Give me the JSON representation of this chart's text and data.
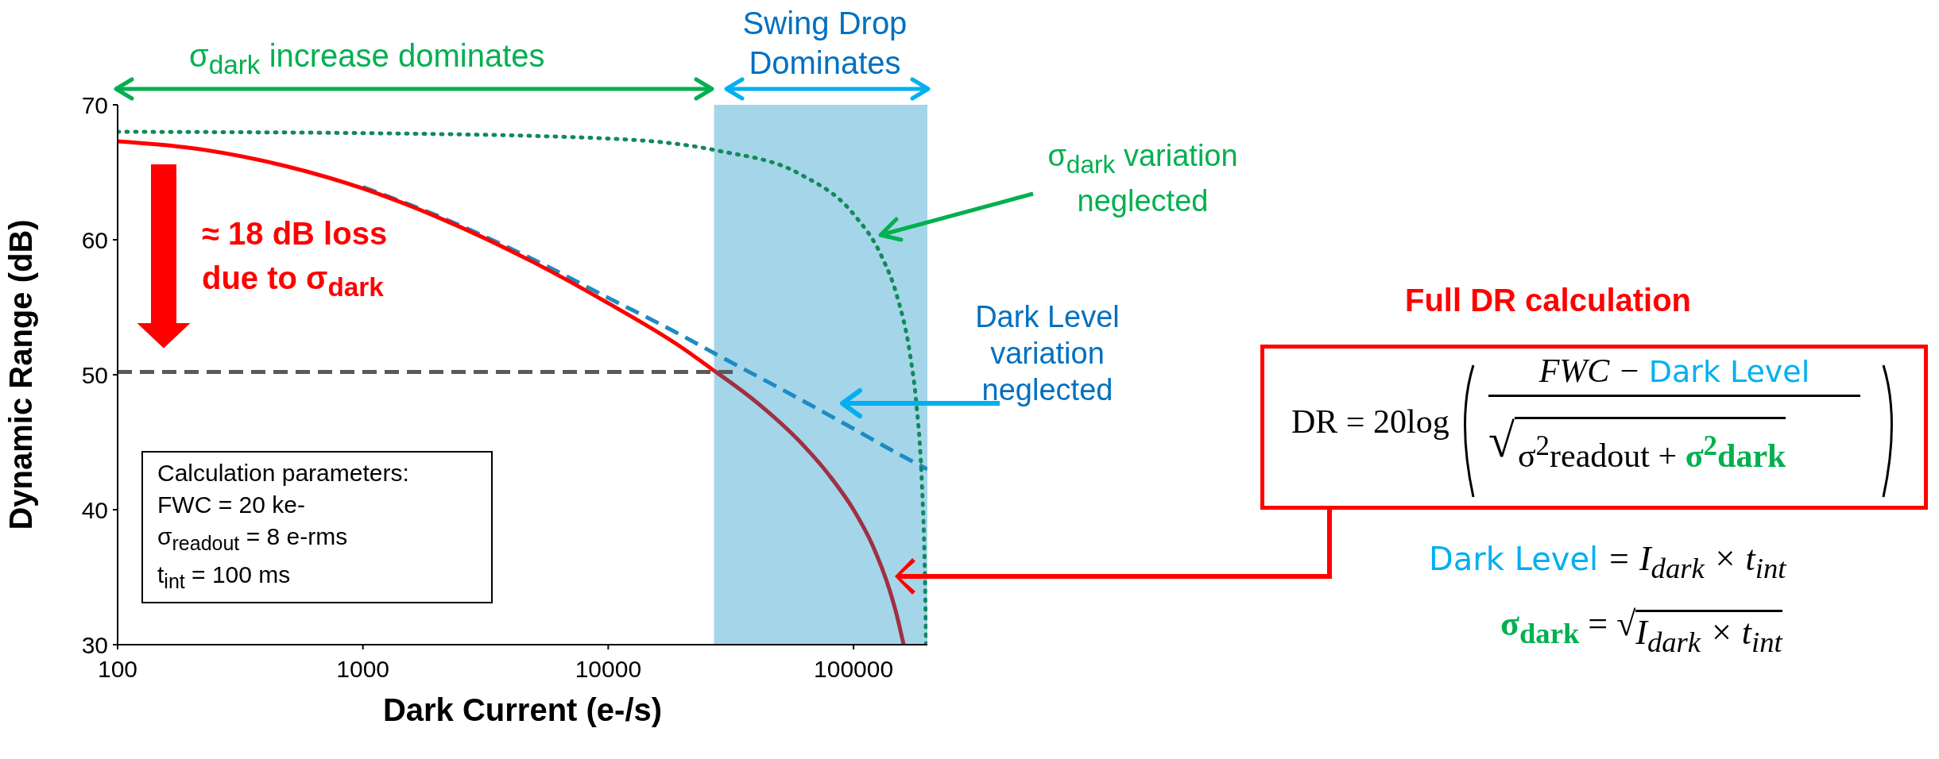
{
  "chart_data": {
    "type": "line",
    "xlabel": "Dark Current (e-/s)",
    "ylabel": "Dynamic Range (dB)",
    "xlim": [
      100,
      200000
    ],
    "xticks": [
      100,
      1000,
      10000,
      100000
    ],
    "ylim": [
      30,
      70
    ],
    "yticks": [
      30,
      40,
      50,
      60,
      70
    ],
    "log": "x",
    "grid": false,
    "legend": false,
    "marker": "none",
    "bands": [
      {
        "axis": "x",
        "from": 27000,
        "to": 200000,
        "color": "#a5d5e8"
      }
    ],
    "series": [
      {
        "color": "#595959",
        "line_style": "dashed",
        "x": [
          100,
          33000
        ],
        "values": [
          50.2,
          50.2
        ]
      },
      {
        "color": "#1e8bc3",
        "line_style": "dashed",
        "x": [
          1000,
          2000,
          5000,
          10000,
          20000,
          27000,
          50000,
          100000,
          150000,
          200000
        ],
        "values": [
          63.9,
          61.8,
          58.5,
          55.7,
          52.9,
          51.6,
          49.0,
          46.0,
          44.2,
          43.0
        ]
      },
      {
        "color": "#ff0000",
        "line_style": "solid",
        "x": [
          100,
          200,
          500,
          1000,
          2000,
          5000,
          10000,
          20000,
          27000
        ],
        "values": [
          67.3,
          66.8,
          65.4,
          63.8,
          61.7,
          58.3,
          55.3,
          52.0,
          50.3
        ]
      },
      {
        "color": "#a03045",
        "line_style": "solid",
        "x": [
          27000,
          40000,
          60000,
          80000,
          100000,
          120000,
          140000,
          150000,
          160000
        ],
        "values": [
          50.3,
          48.0,
          45.1,
          42.5,
          40.0,
          37.3,
          34.1,
          32.2,
          30.0
        ]
      },
      {
        "color": "#118a5a",
        "line_style": "dotted",
        "x": [
          100,
          1000,
          10000,
          28000,
          60000,
          100000,
          130000,
          150000,
          170000,
          180000,
          190000,
          195000,
          197500
        ],
        "values": [
          68.0,
          67.9,
          67.5,
          66.6,
          64.9,
          61.9,
          58.8,
          55.9,
          51.5,
          48.0,
          41.9,
          35.9,
          30.0
        ]
      }
    ],
    "annotations": [
      "σ$_{dark}$ increase dominates",
      "Swing Drop Dominates",
      "σ$_{dark}$ variation neglected",
      "≈ 18 dB loss due to σ$_{dark}$",
      "Dark Level variation neglected",
      "Calculation parameters:",
      "FWC = 20 ke-",
      "σ$_{readout}$ = 8 e-rms",
      "t$_{int}$ = 100 ms",
      "Full DR calculation",
      "DR = 20log",
      "FWC −",
      "Dark Level",
      "√",
      "σ$^{2}$readout +",
      "σ$^{2}$dark",
      "Dark Level",
      "= I$_{dark}$ × t$_{int}$",
      "σ$_{dark}$",
      "= √",
      "I$_{dark}$ × t$_{int}$"
    ]
  }
}
